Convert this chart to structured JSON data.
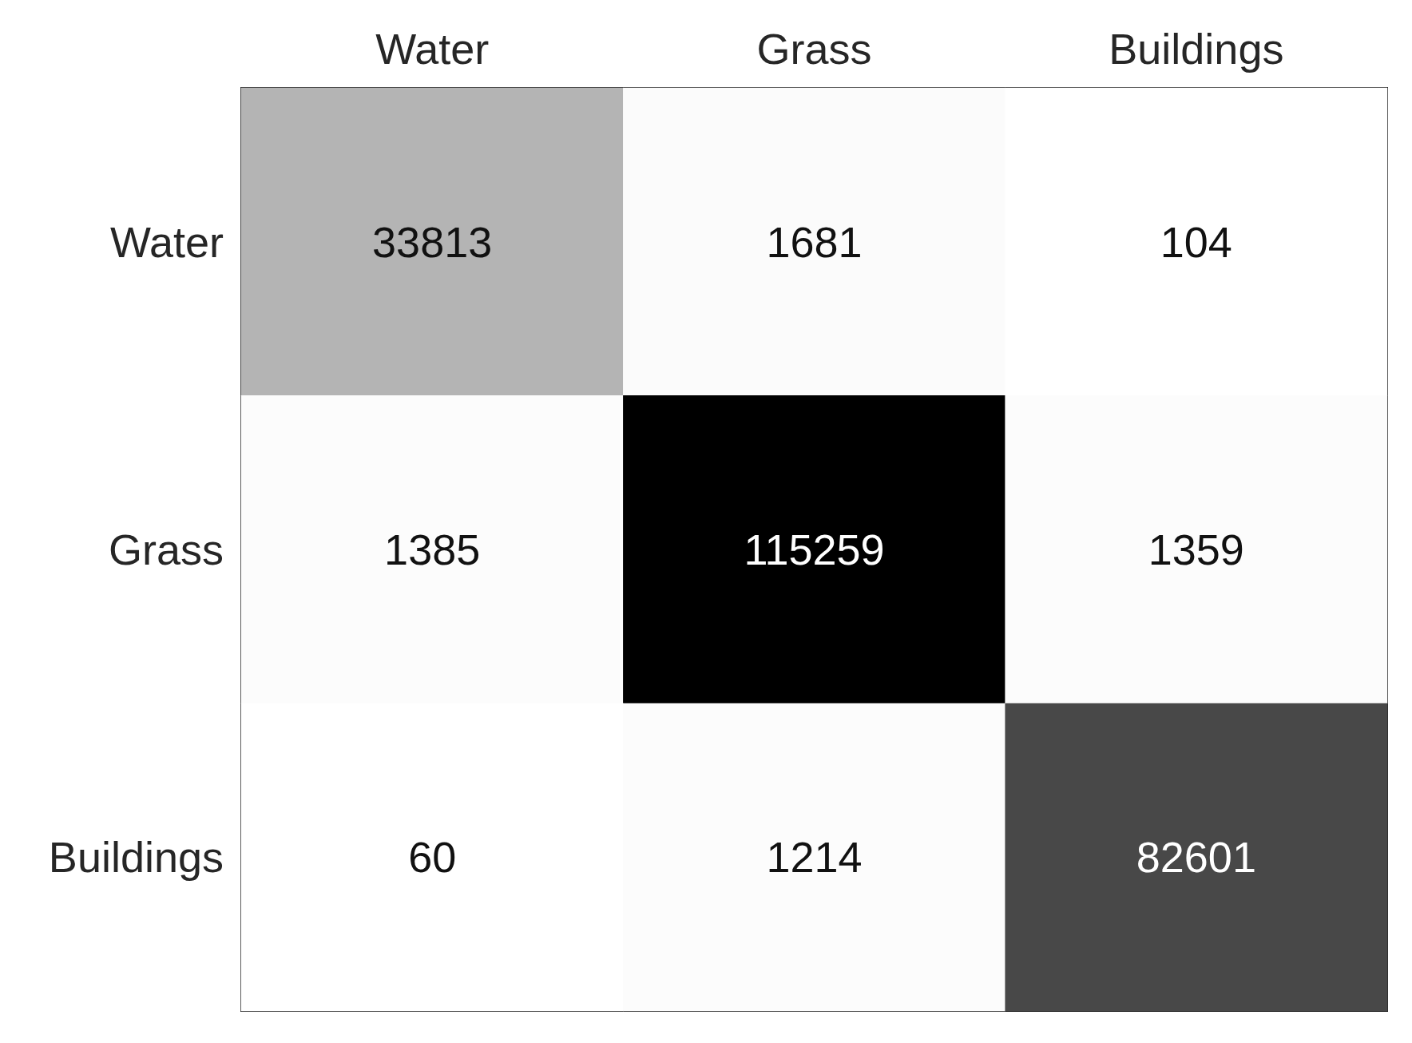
{
  "chart_data": {
    "type": "heatmap",
    "categories": [
      "Water",
      "Grass",
      "Buildings"
    ],
    "y_categories": [
      "Water",
      "Grass",
      "Buildings"
    ],
    "cells": [
      [
        33813,
        1681,
        104
      ],
      [
        1385,
        115259,
        1359
      ],
      [
        60,
        1214,
        82601
      ]
    ],
    "data_labels": true
  }
}
